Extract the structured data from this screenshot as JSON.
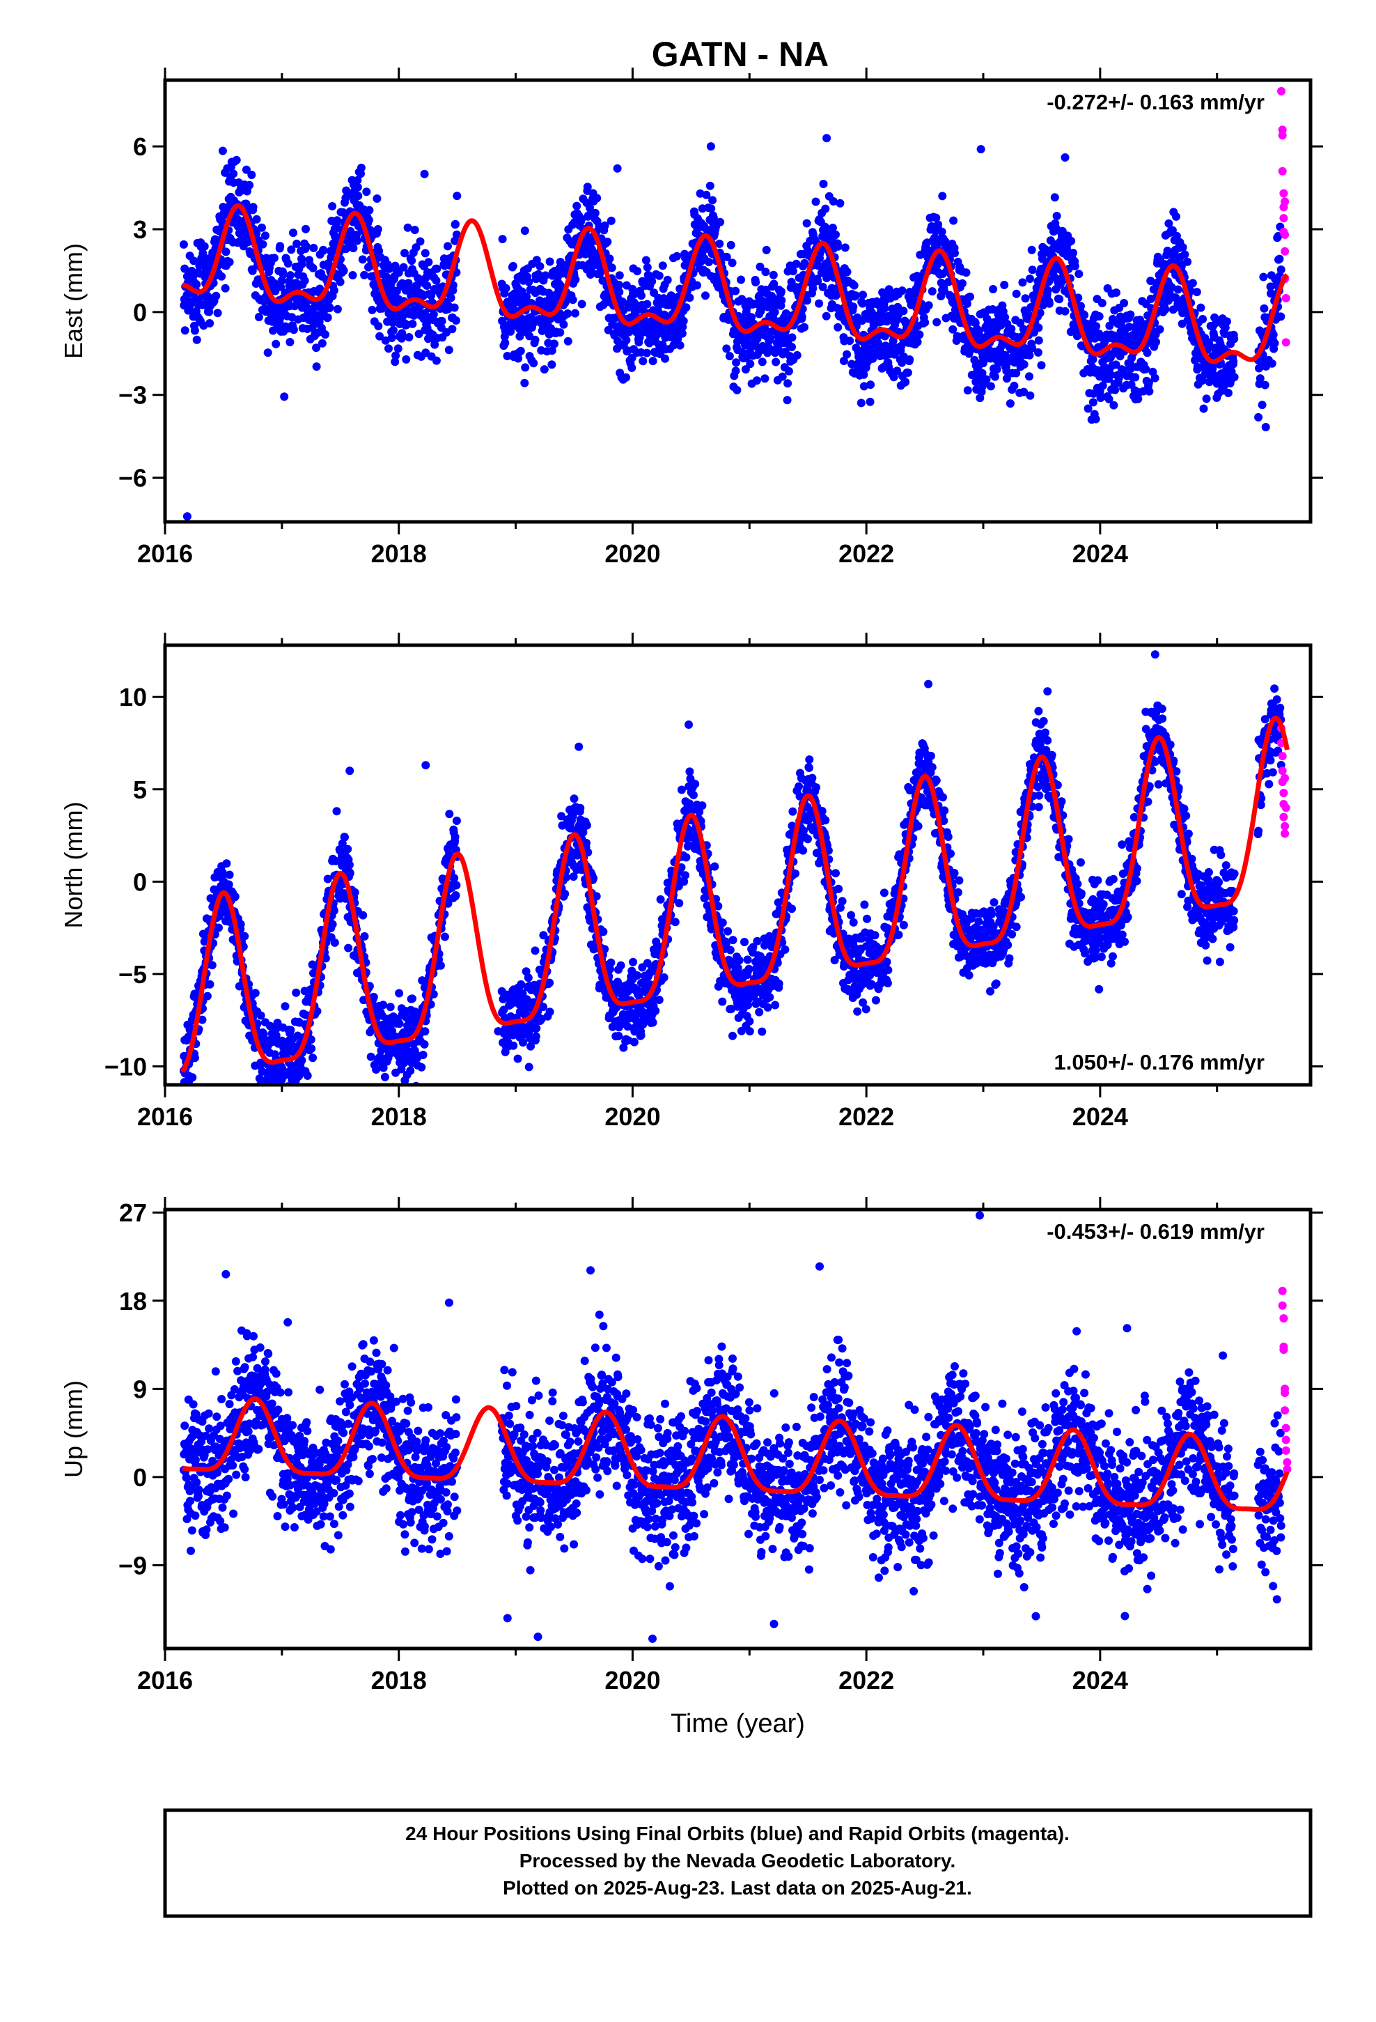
{
  "figure_title": "GATN - NA",
  "footer": {
    "line1": "24 Hour Positions Using Final Orbits (blue) and Rapid Orbits (magenta).",
    "line2": "Processed by the Nevada Geodetic Laboratory.",
    "line3": "Plotted on 2025-Aug-23. Last data on 2025-Aug-21."
  },
  "colors": {
    "final_orbits": "#0000ff",
    "rapid_orbits": "#ff00ff",
    "model_fit": "#ff0000",
    "frame": "#000000"
  },
  "chart_data": [
    {
      "type": "scatter",
      "panel": "east",
      "title": "",
      "xlabel": "",
      "ylabel": "East (mm)",
      "xlim": [
        2016.0,
        2025.8
      ],
      "ylim": [
        -7.6,
        8.4
      ],
      "xticks": [
        2016,
        2018,
        2020,
        2022,
        2024
      ],
      "yticks": [
        -6,
        -3,
        0,
        3,
        6
      ],
      "ytick_labels": [
        "−6",
        "−3",
        "0",
        "3",
        "6"
      ],
      "rate_label": "-0.272+/- 0.163 mm/yr",
      "rate_position": "top-right",
      "grid": false,
      "model": {
        "name": "",
        "rate_mm_yr": -0.272,
        "offset_mm": 0.6,
        "annual_amplitude_mm": 1.5,
        "annual_peak_year": 0.62,
        "semiannual_amplitude_mm": 0.7,
        "semiannual_peak_year": 0.13,
        "start": 2016.15,
        "end": 2025.6,
        "gaps": []
      },
      "final_orbits": {
        "start": 2016.16,
        "end": 2025.55,
        "step_days": 1.0,
        "scatter_sd_mm": 0.9,
        "gaps": [
          [
            2018.5,
            2018.88
          ],
          [
            2025.15,
            2025.35
          ]
        ],
        "outliers": [
          [
            2016.19,
            -7.4
          ],
          [
            2019.87,
            5.2
          ],
          [
            2020.67,
            6.0
          ],
          [
            2021.66,
            6.3
          ],
          [
            2022.98,
            5.9
          ],
          [
            2023.7,
            5.6
          ],
          [
            2022.65,
            4.2
          ],
          [
            2018.22,
            5.0
          ],
          [
            2017.55,
            4.4
          ]
        ]
      },
      "rapid_orbits": [
        [
          2025.55,
          8.0
        ],
        [
          2025.56,
          6.6
        ],
        [
          2025.56,
          6.4
        ],
        [
          2025.56,
          5.1
        ],
        [
          2025.57,
          4.3
        ],
        [
          2025.57,
          3.8
        ],
        [
          2025.57,
          3.4
        ],
        [
          2025.58,
          2.8
        ],
        [
          2025.58,
          2.2
        ],
        [
          2025.58,
          1.2
        ],
        [
          2025.59,
          0.5
        ],
        [
          2025.59,
          -1.1
        ],
        [
          2025.58,
          4.0
        ],
        [
          2025.57,
          2.9
        ]
      ]
    },
    {
      "type": "scatter",
      "panel": "north",
      "title": "",
      "xlabel": "",
      "ylabel": "North (mm)",
      "xlim": [
        2016.0,
        2025.8
      ],
      "ylim": [
        -11.0,
        12.8
      ],
      "xticks": [
        2016,
        2018,
        2020,
        2022,
        2024
      ],
      "yticks": [
        -10,
        -5,
        0,
        5,
        10
      ],
      "ytick_labels": [
        "−10",
        "−5",
        "0",
        "5",
        "10"
      ],
      "rate_label": "1.050+/- 0.176 mm/yr",
      "rate_position": "bottom-right",
      "grid": false,
      "model": {
        "name": "",
        "rate_mm_yr": 1.05,
        "offset_mm": -2.5,
        "annual_amplitude_mm": 4.8,
        "annual_peak_year": 0.5,
        "semiannual_amplitude_mm": 1.3,
        "semiannual_peak_year": 0.0,
        "start": 2016.15,
        "end": 2025.6,
        "gaps": []
      },
      "final_orbits": {
        "start": 2016.16,
        "end": 2025.55,
        "step_days": 1.0,
        "scatter_sd_mm": 1.1,
        "gaps": [
          [
            2018.5,
            2018.88
          ],
          [
            2025.15,
            2025.35
          ]
        ],
        "outliers": [
          [
            2016.2,
            -10.5
          ],
          [
            2016.95,
            -9.6
          ],
          [
            2018.0,
            -8.8
          ],
          [
            2018.85,
            -8.1
          ],
          [
            2024.47,
            12.3
          ],
          [
            2022.53,
            10.7
          ],
          [
            2023.55,
            10.3
          ],
          [
            2020.48,
            8.5
          ],
          [
            2019.54,
            7.3
          ],
          [
            2018.23,
            6.3
          ],
          [
            2017.58,
            6.0
          ]
        ]
      },
      "rapid_orbits": [
        [
          2025.55,
          8.3
        ],
        [
          2025.55,
          7.5
        ],
        [
          2025.56,
          6.8
        ],
        [
          2025.56,
          6.0
        ],
        [
          2025.56,
          5.4
        ],
        [
          2025.57,
          4.8
        ],
        [
          2025.57,
          4.2
        ],
        [
          2025.57,
          3.5
        ],
        [
          2025.58,
          3.0
        ],
        [
          2025.58,
          2.6
        ],
        [
          2025.59,
          4.0
        ],
        [
          2025.58,
          5.6
        ]
      ]
    },
    {
      "type": "scatter",
      "panel": "up",
      "title": "",
      "xlabel": "Time (year)",
      "ylabel": "Up (mm)",
      "xlim": [
        2016.0,
        2025.8
      ],
      "ylim": [
        -17.5,
        27.3
      ],
      "xticks": [
        2016,
        2018,
        2020,
        2022,
        2024
      ],
      "yticks": [
        -9,
        0,
        9,
        18,
        27
      ],
      "ytick_labels": [
        "−9",
        "0",
        "9",
        "18",
        "27"
      ],
      "rate_label": "-0.453+/- 0.619 mm/yr",
      "rate_position": "top-right",
      "grid": false,
      "model": {
        "name": "",
        "rate_mm_yr": -0.453,
        "offset_mm": 1.6,
        "annual_amplitude_mm": 3.7,
        "annual_peak_year": 0.77,
        "semiannual_amplitude_mm": 1.0,
        "semiannual_peak_year": 0.27,
        "start": 2016.15,
        "end": 2025.6,
        "gaps": []
      },
      "final_orbits": {
        "start": 2016.16,
        "end": 2025.55,
        "step_days": 1.0,
        "scatter_sd_mm": 3.4,
        "gaps": [
          [
            2018.5,
            2018.88
          ],
          [
            2025.15,
            2025.35
          ]
        ],
        "outliers": [
          [
            2022.97,
            26.7
          ],
          [
            2016.52,
            20.7
          ],
          [
            2019.64,
            21.1
          ],
          [
            2021.6,
            21.5
          ],
          [
            2018.43,
            17.8
          ],
          [
            2017.05,
            15.8
          ],
          [
            2024.23,
            15.2
          ],
          [
            2025.05,
            12.4
          ],
          [
            2019.19,
            -16.3
          ],
          [
            2020.17,
            -16.5
          ],
          [
            2021.21,
            -15.0
          ],
          [
            2023.45,
            -14.2
          ],
          [
            2018.93,
            -14.4
          ]
        ]
      },
      "rapid_orbits": [
        [
          2025.56,
          19.0
        ],
        [
          2025.56,
          17.5
        ],
        [
          2025.57,
          16.2
        ],
        [
          2025.57,
          13.3
        ],
        [
          2025.57,
          13.0
        ],
        [
          2025.58,
          9.0
        ],
        [
          2025.58,
          8.6
        ],
        [
          2025.58,
          6.8
        ],
        [
          2025.59,
          5.0
        ],
        [
          2025.59,
          3.8
        ],
        [
          2025.59,
          2.7
        ],
        [
          2025.6,
          1.5
        ],
        [
          2025.6,
          0.8
        ]
      ]
    }
  ]
}
